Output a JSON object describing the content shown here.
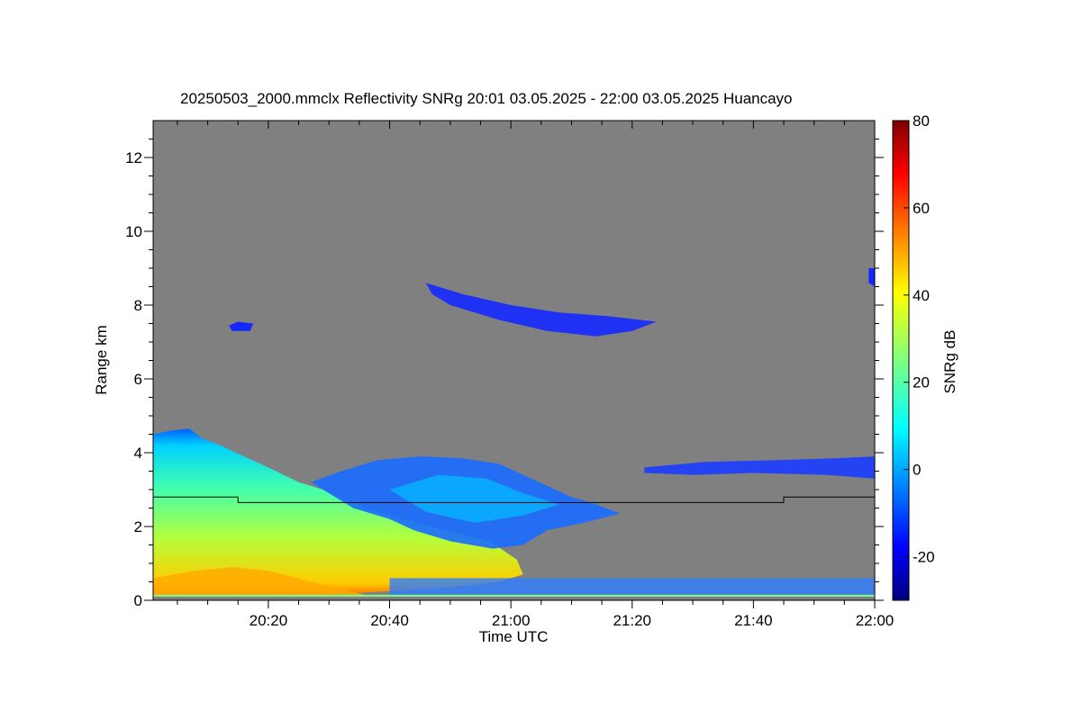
{
  "chart_data": {
    "type": "heatmap",
    "title": "20250503_2000.mmclx Reflectivity SNRg   20:01 03.05.2025 - 22:00 03.05.2025 Huancayo",
    "xlabel": "Time UTC",
    "ylabel": "Range km",
    "colorbar_label": "SNRg dB",
    "x_ticks": [
      "20:20",
      "20:40",
      "21:00",
      "21:20",
      "21:40",
      "22:00"
    ],
    "x_tick_minutes": [
      20,
      40,
      60,
      80,
      100,
      120
    ],
    "xlim_minutes": [
      1,
      120
    ],
    "y_ticks": [
      0,
      2,
      4,
      6,
      8,
      10,
      12
    ],
    "ylim": [
      0,
      13
    ],
    "colorbar_ticks": [
      -20,
      0,
      20,
      40,
      60,
      80
    ],
    "colorbar_range": [
      -30,
      80
    ],
    "colormap": "jet",
    "background_color": "#808080",
    "features": [
      {
        "type": "low-level echo",
        "start_min": 1,
        "end_min": 62,
        "top_km_start": 4.5,
        "top_km_end": 1.0,
        "max_snr_db": 50
      },
      {
        "type": "cloud layer",
        "start_min": 27,
        "end_min": 78,
        "base_km": 2.3,
        "top_km": 4.0,
        "mean_snr_db": -5
      },
      {
        "type": "cloud layer",
        "start_min": 82,
        "end_min": 120,
        "base_km": 3.3,
        "top_km": 3.9,
        "mean_snr_db": -12
      },
      {
        "type": "cirrus",
        "start_min": 46,
        "end_min": 84,
        "base_km": 7.2,
        "top_km": 8.6,
        "mean_snr_db": -18
      },
      {
        "type": "near-surface noise",
        "start_min": 40,
        "end_min": 120,
        "base_km": 0.1,
        "top_km": 0.6,
        "mean_snr_db": 0
      }
    ],
    "boundary_line": [
      {
        "minute": 1,
        "km": 2.8
      },
      {
        "minute": 15,
        "km": 2.8
      },
      {
        "minute": 15,
        "km": 2.65
      },
      {
        "minute": 105,
        "km": 2.65
      },
      {
        "minute": 105,
        "km": 2.8
      },
      {
        "minute": 120,
        "km": 2.8
      }
    ],
    "grid": false
  }
}
